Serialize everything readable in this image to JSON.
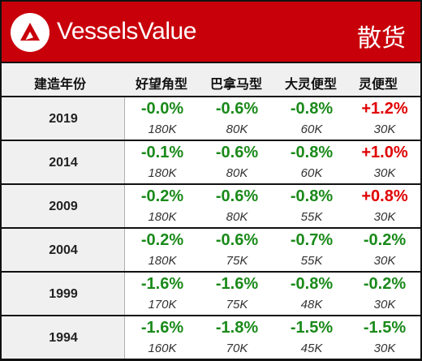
{
  "header": {
    "brand": "VesselsValue",
    "category": "散货",
    "brand_color": "#c8000a"
  },
  "columns": {
    "build_year": "建造年份",
    "capesize": "好望角型",
    "panamax": "巴拿马型",
    "supramax": "大灵便型",
    "handysize": "灵便型"
  },
  "colors": {
    "positive": "#e00000",
    "negative": "#1a8a1a"
  },
  "rows": [
    {
      "year": "2019",
      "cells": [
        {
          "pct": "-0.0%",
          "dir": "neg",
          "size": "180K"
        },
        {
          "pct": "-0.6%",
          "dir": "neg",
          "size": "80K"
        },
        {
          "pct": "-0.8%",
          "dir": "neg",
          "size": "60K"
        },
        {
          "pct": "+1.2%",
          "dir": "pos",
          "size": "30K"
        }
      ]
    },
    {
      "year": "2014",
      "cells": [
        {
          "pct": "-0.1%",
          "dir": "neg",
          "size": "180K"
        },
        {
          "pct": "-0.6%",
          "dir": "neg",
          "size": "80K"
        },
        {
          "pct": "-0.8%",
          "dir": "neg",
          "size": "60K"
        },
        {
          "pct": "+1.0%",
          "dir": "pos",
          "size": "30K"
        }
      ]
    },
    {
      "year": "2009",
      "cells": [
        {
          "pct": "-0.2%",
          "dir": "neg",
          "size": "180K"
        },
        {
          "pct": "-0.6%",
          "dir": "neg",
          "size": "80K"
        },
        {
          "pct": "-0.8%",
          "dir": "neg",
          "size": "55K"
        },
        {
          "pct": "+0.8%",
          "dir": "pos",
          "size": "30K"
        }
      ]
    },
    {
      "year": "2004",
      "cells": [
        {
          "pct": "-0.2%",
          "dir": "neg",
          "size": "180K"
        },
        {
          "pct": "-0.6%",
          "dir": "neg",
          "size": "75K"
        },
        {
          "pct": "-0.7%",
          "dir": "neg",
          "size": "55K"
        },
        {
          "pct": "-0.2%",
          "dir": "neg",
          "size": "30K"
        }
      ]
    },
    {
      "year": "1999",
      "cells": [
        {
          "pct": "-1.6%",
          "dir": "neg",
          "size": "170K"
        },
        {
          "pct": "-1.6%",
          "dir": "neg",
          "size": "75K"
        },
        {
          "pct": "-0.8%",
          "dir": "neg",
          "size": "48K"
        },
        {
          "pct": "-0.2%",
          "dir": "neg",
          "size": "30K"
        }
      ]
    },
    {
      "year": "1994",
      "cells": [
        {
          "pct": "-1.6%",
          "dir": "neg",
          "size": "160K"
        },
        {
          "pct": "-1.8%",
          "dir": "neg",
          "size": "70K"
        },
        {
          "pct": "-1.5%",
          "dir": "neg",
          "size": "45K"
        },
        {
          "pct": "-1.5%",
          "dir": "neg",
          "size": "30K"
        }
      ]
    }
  ]
}
